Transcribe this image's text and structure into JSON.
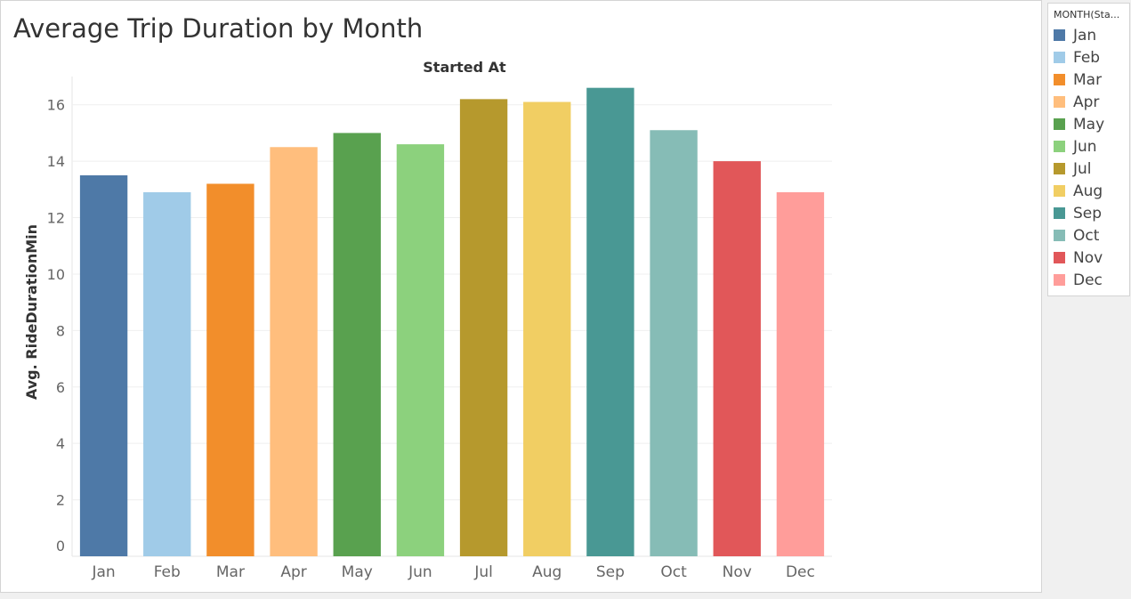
{
  "chart_data": {
    "type": "bar",
    "title": "Average Trip Duration by Month",
    "column_header": "Started At",
    "xlabel": "",
    "ylabel": "Avg. RideDurationMin",
    "ylim": [
      0,
      17
    ],
    "yticks": [
      0,
      2,
      4,
      6,
      8,
      10,
      12,
      14,
      16
    ],
    "grid": true,
    "legend_position": "right",
    "categories": [
      "Jan",
      "Feb",
      "Mar",
      "Apr",
      "May",
      "Jun",
      "Jul",
      "Aug",
      "Sep",
      "Oct",
      "Nov",
      "Dec"
    ],
    "values": [
      13.5,
      12.9,
      13.2,
      14.5,
      15.0,
      14.6,
      16.2,
      16.1,
      16.6,
      15.1,
      14.0,
      12.9
    ],
    "colors": [
      "#4e79a7",
      "#a0cbe8",
      "#f28e2b",
      "#ffbe7d",
      "#59a14f",
      "#8cd17d",
      "#b6992d",
      "#f1ce63",
      "#499894",
      "#86bcb6",
      "#e15759",
      "#ff9d9a"
    ]
  },
  "legend": {
    "title": "MONTH(Sta...",
    "items": [
      {
        "label": "Jan",
        "color": "#4e79a7"
      },
      {
        "label": "Feb",
        "color": "#a0cbe8"
      },
      {
        "label": "Mar",
        "color": "#f28e2b"
      },
      {
        "label": "Apr",
        "color": "#ffbe7d"
      },
      {
        "label": "May",
        "color": "#59a14f"
      },
      {
        "label": "Jun",
        "color": "#8cd17d"
      },
      {
        "label": "Jul",
        "color": "#b6992d"
      },
      {
        "label": "Aug",
        "color": "#f1ce63"
      },
      {
        "label": "Sep",
        "color": "#499894"
      },
      {
        "label": "Oct",
        "color": "#86bcb6"
      },
      {
        "label": "Nov",
        "color": "#e15759"
      },
      {
        "label": "Dec",
        "color": "#ff9d9a"
      }
    ]
  }
}
